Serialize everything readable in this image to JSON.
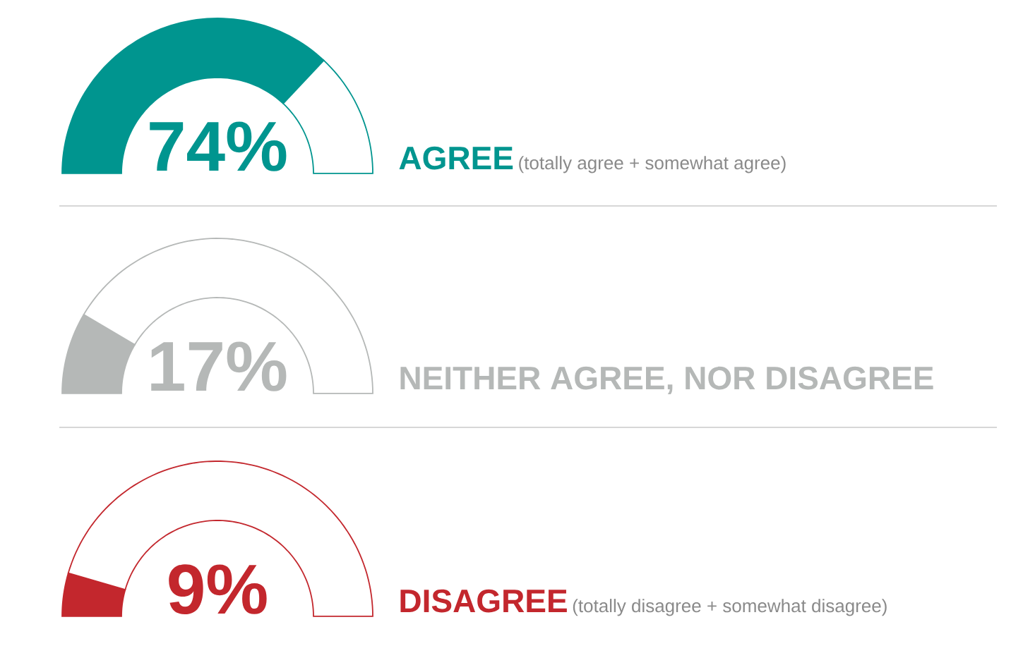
{
  "chart_data": [
    {
      "type": "donut",
      "title": "AGREE",
      "subtitle": "(totally agree + somewhat agree)",
      "categories": [
        null,
        null
      ],
      "values": [
        74,
        26
      ],
      "colors": [
        "#00958f",
        "#ffffff"
      ],
      "annotations": [
        "74%"
      ]
    },
    {
      "type": "donut",
      "title": "NEITHER AGREE, NOR DISAGREE",
      "categories": [
        null,
        null
      ],
      "values": [
        17,
        83
      ],
      "colors": [
        "#b5b8b7",
        "#ffffff"
      ],
      "annotations": [
        "17%"
      ]
    },
    {
      "type": "donut",
      "title": "DISAGREE",
      "subtitle": "(totally disagree + somewhat disagree)",
      "categories": [
        null,
        null
      ],
      "values": [
        9,
        91
      ],
      "colors": [
        "#c3272d",
        "#ffffff"
      ],
      "annotations": [
        "9%"
      ]
    }
  ]
}
